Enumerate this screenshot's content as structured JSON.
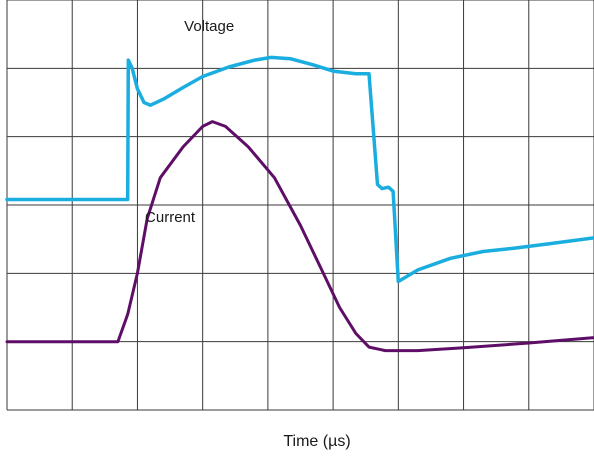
{
  "chart_data": {
    "type": "line",
    "title": "",
    "xlabel": "Time (µs)",
    "ylabel": "",
    "grid": true,
    "legend": "none",
    "x_divisions": 9,
    "y_divisions": 6,
    "series": [
      {
        "label": "Voltage",
        "color": "#1aaee0",
        "points": [
          [
            0.0,
            3.08
          ],
          [
            1.85,
            3.08
          ],
          [
            1.86,
            5.12
          ],
          [
            1.92,
            5.0
          ],
          [
            2.0,
            4.7
          ],
          [
            2.1,
            4.5
          ],
          [
            2.2,
            4.46
          ],
          [
            2.4,
            4.55
          ],
          [
            2.7,
            4.72
          ],
          [
            3.0,
            4.88
          ],
          [
            3.4,
            5.02
          ],
          [
            3.8,
            5.12
          ],
          [
            4.05,
            5.16
          ],
          [
            4.35,
            5.14
          ],
          [
            4.7,
            5.05
          ],
          [
            5.0,
            4.96
          ],
          [
            5.35,
            4.92
          ],
          [
            5.55,
            4.92
          ],
          [
            5.68,
            3.3
          ],
          [
            5.75,
            3.24
          ],
          [
            5.85,
            3.26
          ],
          [
            5.92,
            3.2
          ],
          [
            6.0,
            1.88
          ],
          [
            6.3,
            2.05
          ],
          [
            6.8,
            2.22
          ],
          [
            7.3,
            2.32
          ],
          [
            7.8,
            2.37
          ],
          [
            8.3,
            2.43
          ],
          [
            9.0,
            2.52
          ]
        ]
      },
      {
        "label": "Current",
        "color": "#5e0e66",
        "points": [
          [
            0.0,
            1.0
          ],
          [
            1.7,
            1.0
          ],
          [
            1.85,
            1.4
          ],
          [
            2.0,
            2.0
          ],
          [
            2.15,
            2.8
          ],
          [
            2.35,
            3.4
          ],
          [
            2.7,
            3.85
          ],
          [
            3.0,
            4.15
          ],
          [
            3.15,
            4.22
          ],
          [
            3.35,
            4.15
          ],
          [
            3.7,
            3.85
          ],
          [
            4.1,
            3.4
          ],
          [
            4.5,
            2.7
          ],
          [
            4.8,
            2.1
          ],
          [
            5.1,
            1.5
          ],
          [
            5.35,
            1.12
          ],
          [
            5.55,
            0.92
          ],
          [
            5.8,
            0.87
          ],
          [
            6.3,
            0.87
          ],
          [
            7.0,
            0.91
          ],
          [
            8.0,
            0.98
          ],
          [
            9.0,
            1.06
          ]
        ]
      }
    ],
    "annotations": [
      {
        "text": "Voltage",
        "series": "Voltage",
        "x": 3.1,
        "y": 5.55
      },
      {
        "text": "Current",
        "series": "Current",
        "x": 2.5,
        "y": 2.75
      }
    ]
  }
}
